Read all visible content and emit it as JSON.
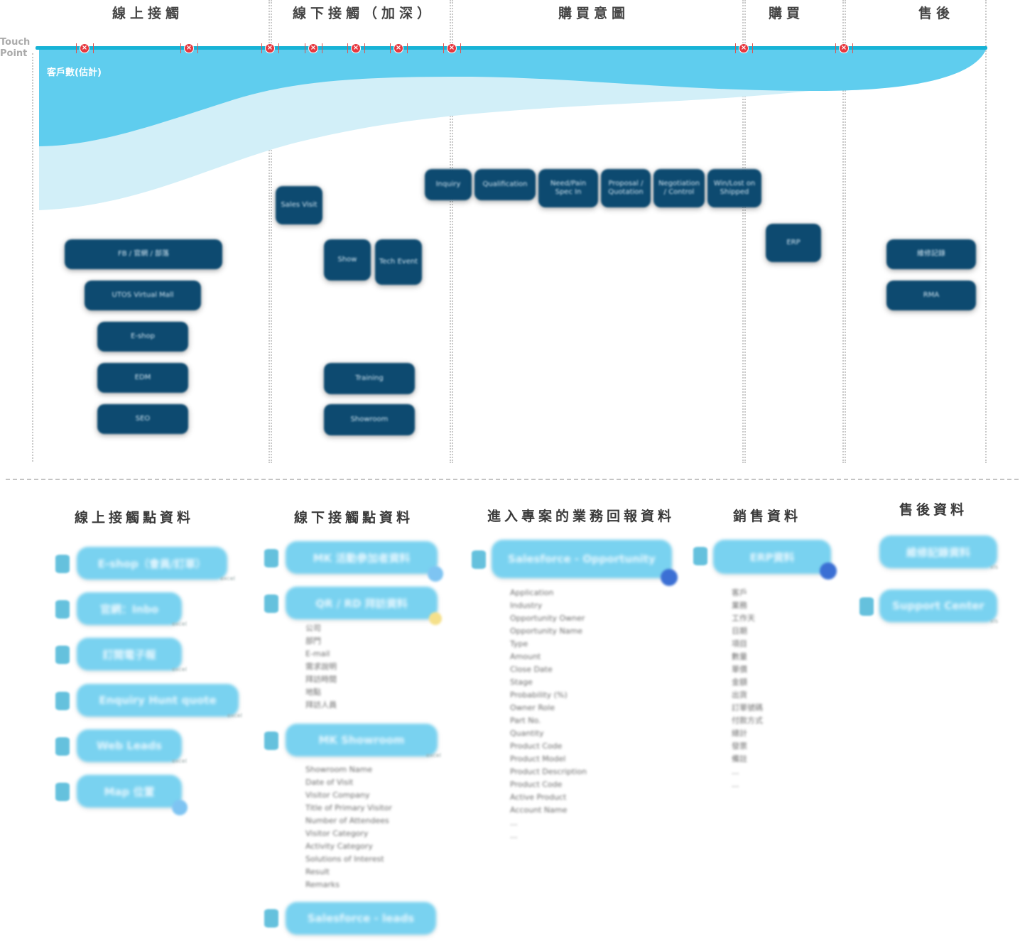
{
  "stages": [
    {
      "title": "線上接觸"
    },
    {
      "title": "線下接觸（加深）"
    },
    {
      "title": "購買意圖"
    },
    {
      "title": "購買"
    },
    {
      "title": "售後"
    }
  ],
  "touchpoint_label": "Touch Point",
  "customer_count_label": "客戶數(估計)",
  "colors": {
    "timeline": "#17b3d6",
    "area_dark": "#5fcdee",
    "area_light": "#d2eff8",
    "node_dark": "#0d4a70",
    "node_light": "#79d2f0",
    "x_mark": "#e6383f"
  },
  "touch_nodes": [
    {
      "label": "FB / 官網 / 部落"
    },
    {
      "label": "UTOS Virtual Mall"
    },
    {
      "label": "E-shop"
    },
    {
      "label": "EDM"
    },
    {
      "label": "SEO"
    },
    {
      "label": "Sales Visit"
    },
    {
      "label": "Show"
    },
    {
      "label": "Tech Event"
    },
    {
      "label": "Training"
    },
    {
      "label": "Showroom"
    },
    {
      "label": "Inquiry"
    },
    {
      "label": "Qualification"
    },
    {
      "label": "Need/Pain Spec In"
    },
    {
      "label": "Proposal / Quotation"
    },
    {
      "label": "Negotiation / Control"
    },
    {
      "label": "Win/Lost on Shipped"
    },
    {
      "label": "ERP"
    },
    {
      "label": "維修記錄"
    },
    {
      "label": "RMA"
    }
  ],
  "sections": [
    {
      "title": "線上接觸點資料"
    },
    {
      "title": "線下接觸點資料"
    },
    {
      "title": "進入專案的業務回報資料"
    },
    {
      "title": "銷售資料"
    },
    {
      "title": "售後資料"
    }
  ],
  "data_nodes": {
    "online": [
      {
        "label": "E-shop（會員/訂單）"
      },
      {
        "label": "官網：Inbo"
      },
      {
        "label": "訂閱電子報"
      },
      {
        "label": "Enquiry Hunt quote"
      },
      {
        "label": "Web Leads"
      },
      {
        "label": "Map 位置"
      }
    ],
    "offline": [
      {
        "label": "MK 活動參加者資料"
      },
      {
        "label": "QR / RD 拜訪資料"
      },
      {
        "label": "MK Showroom"
      },
      {
        "label": "Salesforce - leads"
      }
    ],
    "project": [
      {
        "label": "Salesforce - Opportunity"
      }
    ],
    "sales": [
      {
        "label": "ERP資料"
      }
    ],
    "aftersales": [
      {
        "label": "維修記錄資料"
      },
      {
        "label": "Support Center"
      }
    ]
  },
  "field_lists": {
    "offline_visit": [
      "公司",
      "部門",
      "E-mail",
      "需求說明",
      "拜訪時間",
      "地點",
      "拜訪人員"
    ],
    "showroom": [
      "Showroom Name",
      "Date of Visit",
      "Visitor Company",
      "Title of Primary Visitor",
      "Number of Attendees",
      "Visitor Category",
      "Activity Category",
      "Solutions of Interest",
      "Result",
      "Remarks"
    ],
    "opportunity": [
      "Application",
      "Industry",
      "Opportunity Owner",
      "Opportunity Name",
      "Type",
      "Amount",
      "Close Date",
      "Stage",
      "Probability (%)",
      "Owner Role",
      "Part No.",
      "Quantity",
      "Product Code",
      "Product Model",
      "Product Description",
      "Product Code",
      "Active Product",
      "Account Name",
      "...",
      "..."
    ],
    "sales": [
      "客戶",
      "業務",
      "工作天",
      "日期",
      "項目",
      "數量",
      "單價",
      "金額",
      "出貨",
      "訂單號碼",
      "付款方式",
      "總計",
      "發票",
      "備註",
      "...",
      "..."
    ]
  }
}
